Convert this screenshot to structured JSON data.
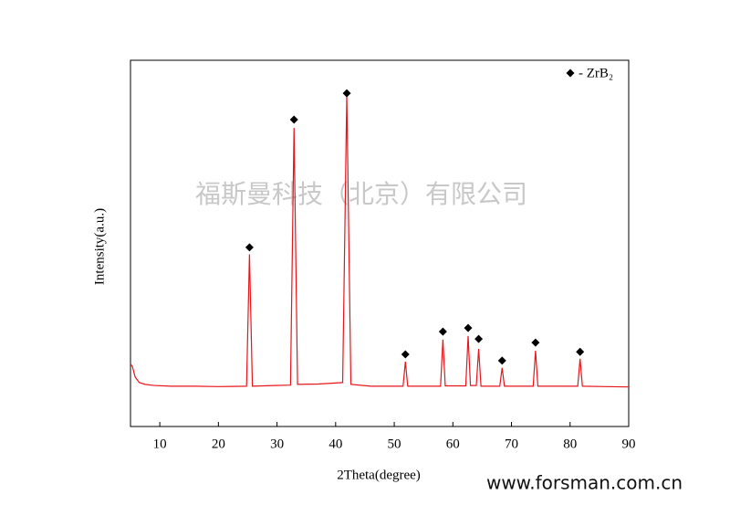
{
  "chart_data": {
    "type": "line",
    "xlabel": "2Theta(degree)",
    "ylabel": "Intensity(a.u.)",
    "xlim": [
      5,
      90
    ],
    "xticks": [
      10,
      20,
      30,
      40,
      50,
      60,
      70,
      80,
      90
    ],
    "ylim": [
      0,
      100
    ],
    "legend": "upper right",
    "series": [
      {
        "name": null,
        "color": "#e8151b",
        "x": [
          5,
          5.3,
          5.8,
          6.5,
          7.5,
          9,
          12,
          16,
          20,
          24.8,
          25.3,
          25.8,
          29.5,
          32.3,
          32.9,
          33.5,
          37,
          41.2,
          41.9,
          42.6,
          46,
          51.5,
          51.9,
          52.3,
          55,
          57.9,
          58.3,
          58.7,
          62.2,
          62.6,
          63.0,
          64.0,
          64.4,
          64.8,
          68.0,
          68.4,
          68.8,
          71,
          73.7,
          74.1,
          74.5,
          78,
          81.3,
          81.7,
          82.1,
          86,
          90
        ],
        "values": [
          17,
          16.5,
          13.5,
          12,
          11.5,
          11.2,
          11,
          11,
          10.9,
          11,
          47,
          11,
          11.2,
          11.3,
          81.5,
          11.5,
          11.6,
          12,
          90.5,
          11.5,
          11,
          11,
          17.7,
          11,
          11,
          11,
          23.7,
          11.1,
          11.1,
          24.7,
          11.2,
          11.2,
          21.2,
          11,
          11,
          16,
          11,
          11,
          11,
          20.7,
          11,
          11,
          11,
          18.5,
          11,
          10.9,
          10.8
        ]
      },
      {
        "name": "- ZrB₂",
        "color": "#000000",
        "marker": "diamond",
        "x": [
          25.3,
          32.9,
          41.9,
          51.9,
          58.3,
          62.6,
          64.4,
          68.4,
          74.1,
          81.7
        ],
        "values": [
          48.9,
          83.8,
          91,
          19.7,
          25.9,
          26.9,
          23.9,
          18,
          22.9,
          20.4
        ]
      }
    ],
    "annotations": [
      "福斯曼科技（北京）有限公司",
      "www.forsman.com.cn"
    ]
  }
}
